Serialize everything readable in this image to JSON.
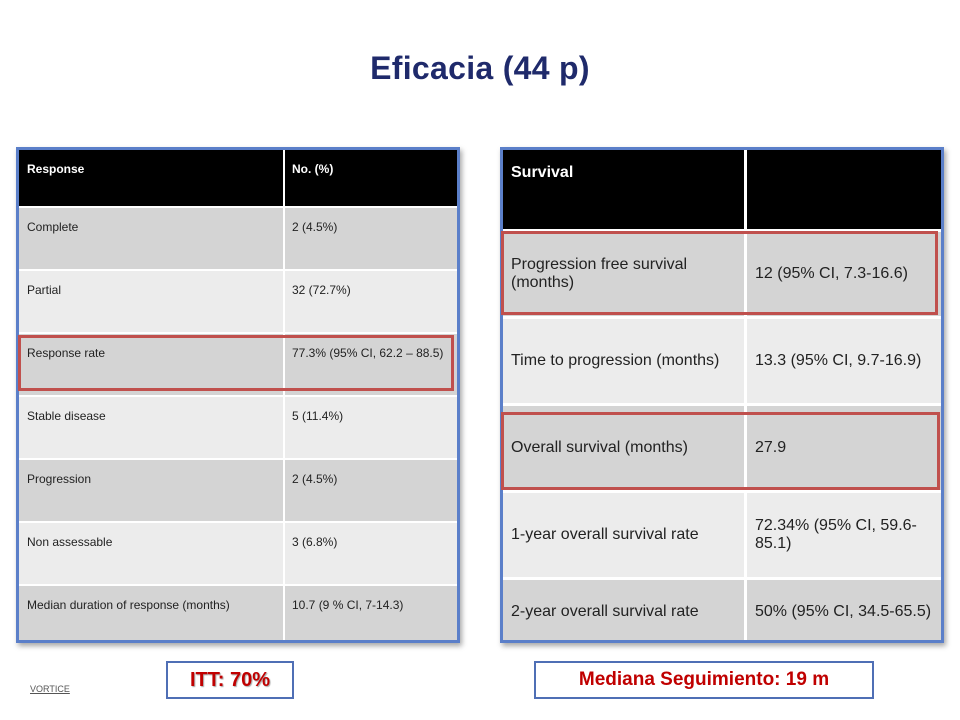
{
  "slide": {
    "title": "Eficacia (44 p)",
    "footer_note": "VORTICE",
    "itt_label": "ITT:  70%",
    "median_followup_label": "Mediana Seguimiento: 19 m"
  },
  "response_table": {
    "headers": [
      "Response",
      "No. (%)"
    ],
    "rows": [
      {
        "label": "Complete",
        "value": "2 (4.5%)"
      },
      {
        "label": "Partial",
        "value": "32 (72.7%)"
      },
      {
        "label": "Response rate",
        "value": "77.3% (95% CI, 62.2 – 88.5)"
      },
      {
        "label": "Stable disease",
        "value": "5 (11.4%)"
      },
      {
        "label": "Progression",
        "value": "2  (4.5%)"
      },
      {
        "label": "Non assessable",
        "value": "3  (6.8%)"
      },
      {
        "label": "Median duration of response (months)",
        "value": "10.7 (9 % CI,  7-14.3)"
      }
    ],
    "highlighted_row": "Response rate"
  },
  "survival_table": {
    "headers": [
      "Survival",
      ""
    ],
    "rows": [
      {
        "label": "Progression free survival (months)",
        "value": "12 (95% CI,  7.3-16.6)"
      },
      {
        "label": "Time to progression (months)",
        "value": "13.3 (95% CI, 9.7-16.9)"
      },
      {
        "label": "Overall survival (months)",
        "value": "27.9"
      },
      {
        "label": "1-year overall survival rate",
        "value": "72.34% (95% CI, 59.6-85.1)"
      },
      {
        "label": "2-year overall survival rate",
        "value": "50% (95% CI, 34.5-65.5)"
      }
    ],
    "highlighted_rows": [
      "Progression free survival (months)",
      "Overall survival (months)"
    ]
  },
  "colors": {
    "title": "#1f2a6b",
    "table_border": "#5b7fc9",
    "highlight": "#c0504d",
    "label_text": "#c00000",
    "row_gray": "#d4d4d4",
    "row_light": "#ececec"
  }
}
